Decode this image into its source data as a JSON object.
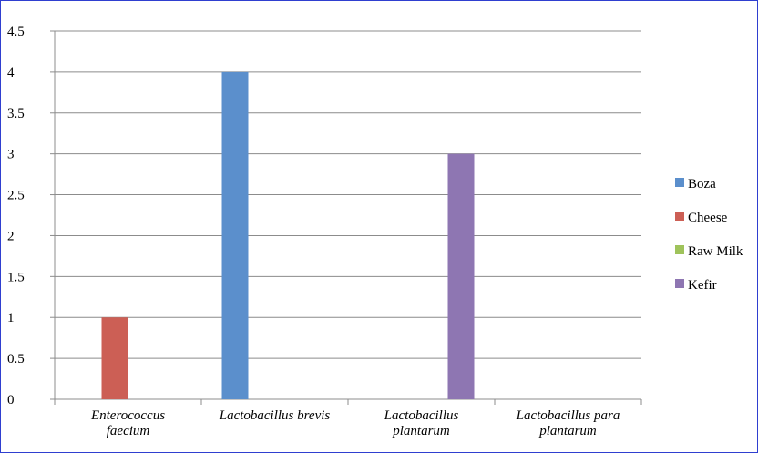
{
  "chart_data": {
    "type": "bar",
    "categories": [
      [
        "Enterococcus",
        "faecium"
      ],
      [
        "Lactobacillus brevis"
      ],
      [
        "Lactobacillus",
        "plantarum"
      ],
      [
        "Lactobacillus para",
        "plantarum"
      ]
    ],
    "series": [
      {
        "name": "Boza",
        "color": "#5b8fcc",
        "values": [
          0,
          4,
          0,
          0
        ]
      },
      {
        "name": "Cheese",
        "color": "#cc5f55",
        "values": [
          1,
          0,
          0,
          0
        ]
      },
      {
        "name": "Raw Milk",
        "color": "#9fc35b",
        "values": [
          0,
          0,
          0,
          0
        ]
      },
      {
        "name": "Kefir",
        "color": "#8e76b2",
        "values": [
          0,
          0,
          3,
          0
        ]
      }
    ],
    "ylim": [
      0,
      4.5
    ],
    "yticks": [
      "0",
      "0.5",
      "1",
      "1.5",
      "2",
      "2.5",
      "3",
      "3.5",
      "4",
      "4.5"
    ],
    "grid": true,
    "legend": "right",
    "title": "",
    "xlabel": "",
    "ylabel": ""
  }
}
